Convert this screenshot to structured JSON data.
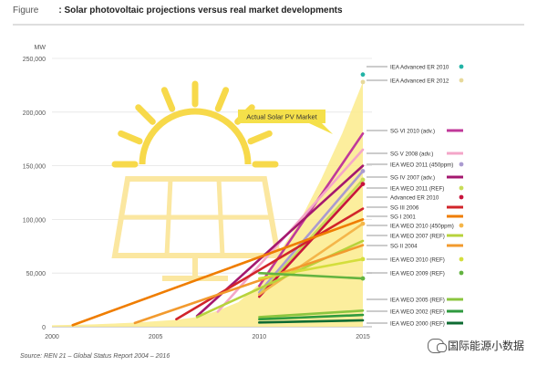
{
  "header": {
    "label": "Figure",
    "title": ": Solar photovoltaic projections versus real market developments"
  },
  "source": "Source: REN 21 – Global Status Report 2004 – 2016",
  "watermark": "国际能源小数据",
  "colors": {
    "area": "#fbeb8c",
    "sun_icon": "#f7d94a",
    "sun_panel": "#fbe7a0",
    "badge": "#f5e04a",
    "grid": "#e4e4e4"
  },
  "chart_data": {
    "type": "line",
    "title": "Solar photovoltaic projections versus real market developments",
    "unit_label": "MW",
    "xlim": [
      2000,
      2015
    ],
    "ylim": [
      0,
      250000
    ],
    "x_ticks": [
      2000,
      2005,
      2010,
      2015
    ],
    "y_ticks": [
      {
        "value": 0,
        "label": "0"
      },
      {
        "value": 50000,
        "label": "50,000"
      },
      {
        "value": 100000,
        "label": "100,000"
      },
      {
        "value": 150000,
        "label": "150,000"
      },
      {
        "value": 200000,
        "label": "200,000"
      },
      {
        "value": 250000,
        "label": "250,000"
      }
    ],
    "grid": true,
    "actual_market": {
      "name": "Actual Solar PV Market",
      "color": "#fbeb8c",
      "x": [
        2000,
        2002,
        2004,
        2006,
        2007,
        2008,
        2009,
        2010,
        2011,
        2012,
        2013,
        2014,
        2015
      ],
      "y": [
        1400,
        2200,
        3800,
        6500,
        9000,
        15000,
        23000,
        40000,
        70000,
        100000,
        138000,
        180000,
        228000
      ]
    },
    "series": [
      {
        "name": "IEA Advanced ER 2010",
        "color": "#22b3a6",
        "marker": true,
        "x": [
          2015
        ],
        "y": [
          235000
        ]
      },
      {
        "name": "IEA Advanced ER 2012",
        "color": "#e7d99b",
        "marker": true,
        "x": [
          2015
        ],
        "y": [
          228000
        ]
      },
      {
        "name": "SG VI 2010 (adv.)",
        "color": "#c0399a",
        "marker": false,
        "x": [
          2010,
          2015
        ],
        "y": [
          38000,
          180000
        ]
      },
      {
        "name": "SG V 2008 (adv.)",
        "color": "#f4a6c8",
        "marker": false,
        "x": [
          2008,
          2015
        ],
        "y": [
          14000,
          165000
        ]
      },
      {
        "name": "IEA WEO 2011 (450ppm)",
        "color": "#aa9bd0",
        "marker": true,
        "x": [
          2010,
          2015
        ],
        "y": [
          32000,
          145000
        ]
      },
      {
        "name": "SG IV 2007 (adv.)",
        "color": "#a4186f",
        "marker": false,
        "x": [
          2007,
          2015
        ],
        "y": [
          10000,
          150000
        ]
      },
      {
        "name": "IEA WEO 2011 (REF)",
        "color": "#c8dc5a",
        "marker": true,
        "x": [
          2010,
          2015
        ],
        "y": [
          30000,
          137000
        ]
      },
      {
        "name": "Advanced ER 2010",
        "color": "#c8143c",
        "marker": true,
        "x": [
          2010,
          2015
        ],
        "y": [
          28000,
          133000
        ]
      },
      {
        "name": "SG III 2006",
        "color": "#d1242a",
        "marker": false,
        "x": [
          2006,
          2015
        ],
        "y": [
          7000,
          110000
        ]
      },
      {
        "name": "SG I 2001",
        "color": "#ef7d00",
        "marker": false,
        "x": [
          2001,
          2015
        ],
        "y": [
          1500,
          100000
        ]
      },
      {
        "name": "IEA WEO 2010 (450ppm)",
        "color": "#f4b64a",
        "marker": true,
        "x": [
          2010,
          2015
        ],
        "y": [
          30000,
          96000
        ]
      },
      {
        "name": "IEA WEO 2007 (REF)",
        "color": "#b7d33c",
        "marker": false,
        "x": [
          2007,
          2015
        ],
        "y": [
          9000,
          80000
        ]
      },
      {
        "name": "SG II 2004",
        "color": "#f29a2e",
        "marker": false,
        "x": [
          2004,
          2015
        ],
        "y": [
          3500,
          76000
        ]
      },
      {
        "name": "IEA WEO 2010 (REF)",
        "color": "#d4de3c",
        "marker": true,
        "x": [
          2010,
          2015
        ],
        "y": [
          45000,
          63000
        ]
      },
      {
        "name": "IEA WEO 2009 (REF)",
        "color": "#63b340",
        "marker": true,
        "x": [
          2010,
          2015
        ],
        "y": [
          50000,
          45000
        ]
      },
      {
        "name": "IEA WEO 2005 (REF)",
        "color": "#8bc53f",
        "marker": false,
        "x": [
          2010,
          2015
        ],
        "y": [
          9000,
          15000
        ]
      },
      {
        "name": "IEA WEO 2002 (REF)",
        "color": "#2f9a3f",
        "marker": false,
        "x": [
          2010,
          2015
        ],
        "y": [
          7000,
          11000
        ]
      },
      {
        "name": "IEA WEO 2000 (REF)",
        "color": "#0e6b32",
        "marker": false,
        "x": [
          2010,
          2015
        ],
        "y": [
          4000,
          6000
        ]
      }
    ]
  }
}
